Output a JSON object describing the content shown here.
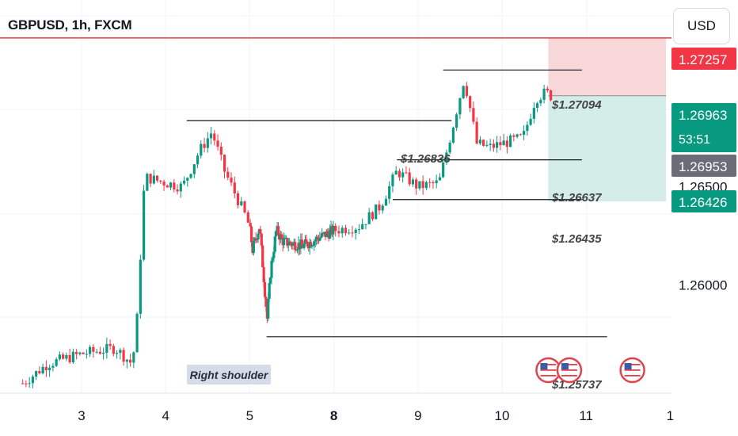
{
  "header": {
    "title": "GBPUSD, 1h, FXCM",
    "currency_button": "USD"
  },
  "colors": {
    "up": "#089981",
    "down": "#f23645",
    "resistance_line": "#f23645",
    "level_line": "#131722",
    "stop_zone": "#f8d7d9",
    "target_zone": "#d4ede7",
    "tag_red": "#f23645",
    "tag_green": "#089981",
    "tag_gray": "#6a6d78"
  },
  "chart_data": {
    "type": "candlestick",
    "symbol": "GBPUSD",
    "timeframe": "1h",
    "source": "FXCM",
    "ylim": [
      1.2545,
      1.2745
    ],
    "x_ticks": [
      {
        "label": "3",
        "day": 3
      },
      {
        "label": "4",
        "day": 4
      },
      {
        "label": "5",
        "day": 5
      },
      {
        "label": "8",
        "day": 8,
        "bold": true
      },
      {
        "label": "9",
        "day": 9
      },
      {
        "label": "10",
        "day": 10
      },
      {
        "label": "11",
        "day": 11
      },
      {
        "label": "1",
        "day": 12
      }
    ],
    "y_ticks": [
      "1.26500",
      "1.26000"
    ],
    "y_tick_values": [
      1.265,
      1.26
    ],
    "price_tags": [
      {
        "label": "1.27257",
        "value": 1.27257,
        "color": "red"
      },
      {
        "label": "1.26963",
        "value": 1.26963,
        "sub": "53:51",
        "color": "green"
      },
      {
        "label": "1.26953",
        "value": 1.26953,
        "color": "gray"
      },
      {
        "label": "1.26426",
        "value": 1.26426,
        "color": "green"
      }
    ],
    "horizontal_lines": [
      {
        "value": 1.27257,
        "color": "red"
      },
      {
        "value": 1.27094,
        "x_start_day": 9.3,
        "x_end_day": 10.95,
        "label": "$1.27094"
      },
      {
        "value": 1.26836,
        "x_start_day": 4.25,
        "x_end_day": 9.4,
        "label": "$1.26836"
      },
      {
        "value": 1.26637,
        "x_start_day": 8.75,
        "x_end_day": 10.95,
        "label": "$1.26637"
      },
      {
        "value": 1.26435,
        "x_start_day": 8.7,
        "x_end_day": 10.95,
        "label": "$1.26435"
      },
      {
        "value": 1.25737,
        "x_start_day": 5.6,
        "x_end_day": 11.25,
        "label": "$1.25737"
      }
    ],
    "position": {
      "x_start_day": 10.55,
      "x_end_day": 11.95,
      "entry": 1.26963,
      "stop": 1.27257,
      "target": 1.26426
    },
    "annotations": [
      {
        "text": "Right shoulder",
        "day": 4.55,
        "value": 1.25715
      }
    ],
    "events": [
      {
        "icon": "us-flag",
        "day": 10.55
      },
      {
        "icon": "us-flag",
        "day": 10.8
      },
      {
        "icon": "us-flag",
        "day": 11.55
      }
    ],
    "price_path": [
      {
        "day": 2.3,
        "price": 1.255
      },
      {
        "day": 2.6,
        "price": 1.256
      },
      {
        "day": 3.0,
        "price": 1.2565
      },
      {
        "day": 3.4,
        "price": 1.2568
      },
      {
        "day": 3.6,
        "price": 1.256
      },
      {
        "day": 3.65,
        "price": 1.2575
      },
      {
        "day": 3.7,
        "price": 1.2615
      },
      {
        "day": 3.75,
        "price": 1.2655
      },
      {
        "day": 4.0,
        "price": 1.2652
      },
      {
        "day": 4.2,
        "price": 1.265
      },
      {
        "day": 4.4,
        "price": 1.2668
      },
      {
        "day": 4.55,
        "price": 1.2678
      },
      {
        "day": 4.7,
        "price": 1.2658
      },
      {
        "day": 4.95,
        "price": 1.2635
      },
      {
        "day": 5.1,
        "price": 1.2618
      },
      {
        "day": 5.35,
        "price": 1.263
      },
      {
        "day": 5.55,
        "price": 1.2595
      },
      {
        "day": 5.62,
        "price": 1.2583
      },
      {
        "day": 5.75,
        "price": 1.2608
      },
      {
        "day": 5.95,
        "price": 1.2628
      },
      {
        "day": 6.2,
        "price": 1.2622
      },
      {
        "day": 6.9,
        "price": 1.262
      },
      {
        "day": 8.3,
        "price": 1.263
      },
      {
        "day": 8.55,
        "price": 1.264
      },
      {
        "day": 8.75,
        "price": 1.2658
      },
      {
        "day": 9.0,
        "price": 1.265
      },
      {
        "day": 9.25,
        "price": 1.2652
      },
      {
        "day": 9.4,
        "price": 1.2678
      },
      {
        "day": 9.55,
        "price": 1.2705
      },
      {
        "day": 9.62,
        "price": 1.269
      },
      {
        "day": 9.7,
        "price": 1.2672
      },
      {
        "day": 9.85,
        "price": 1.267
      },
      {
        "day": 10.0,
        "price": 1.2672
      },
      {
        "day": 10.25,
        "price": 1.2675
      },
      {
        "day": 10.4,
        "price": 1.2695
      },
      {
        "day": 10.52,
        "price": 1.2698
      },
      {
        "day": 10.58,
        "price": 1.26963
      }
    ]
  }
}
